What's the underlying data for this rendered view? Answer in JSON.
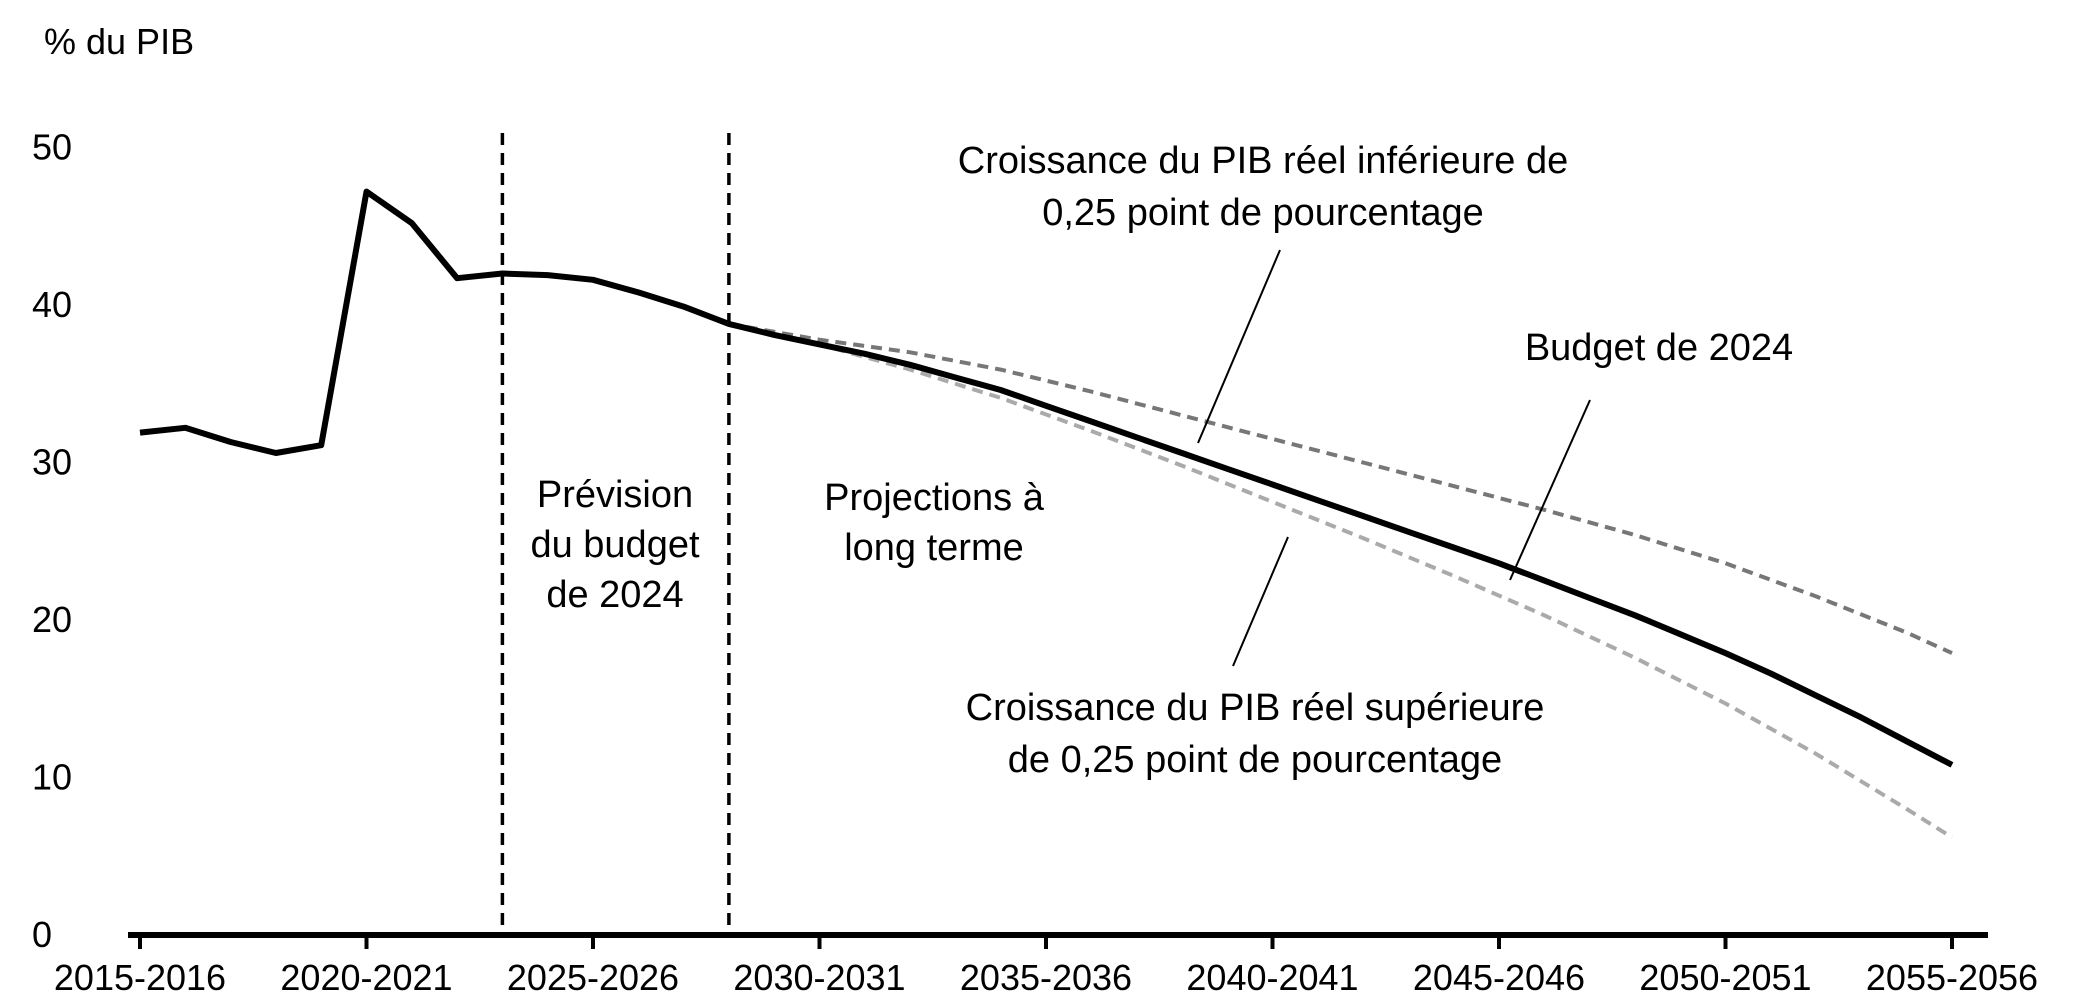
{
  "chart_data": {
    "type": "line",
    "title": "",
    "ylabel": "% du PIB",
    "xlabel": "",
    "ylim": [
      0,
      50
    ],
    "yticks": [
      0,
      10,
      20,
      30,
      40,
      50
    ],
    "xticks": [
      "2015-2016",
      "2020-2021",
      "2025-2026",
      "2030-2031",
      "2035-2036",
      "2040-2041",
      "2045-2046",
      "2050-2051",
      "2055-2056"
    ],
    "grid": false,
    "legend": "none",
    "series": [
      {
        "name": "Budget de 2024",
        "color": "#000000",
        "style": "solid",
        "x": [
          "2015-2016",
          "2016-2017",
          "2017-2018",
          "2018-2019",
          "2019-2020",
          "2020-2021",
          "2021-2022",
          "2022-2023",
          "2023-2024",
          "2024-2025",
          "2025-2026",
          "2026-2027",
          "2027-2028",
          "2028-2029",
          "2029-2030",
          "2030-2031",
          "2031-2032",
          "2032-2033",
          "2033-2034",
          "2034-2035",
          "2035-2036",
          "2036-2037",
          "2037-2038",
          "2038-2039",
          "2039-2040",
          "2040-2041",
          "2041-2042",
          "2042-2043",
          "2043-2044",
          "2044-2045",
          "2045-2046",
          "2046-2047",
          "2047-2048",
          "2048-2049",
          "2049-2050",
          "2050-2051",
          "2051-2052",
          "2052-2053",
          "2053-2054",
          "2054-2055",
          "2055-2056"
        ],
        "values": [
          31.9,
          32.2,
          31.3,
          30.6,
          31.1,
          47.2,
          45.2,
          41.7,
          42.0,
          41.9,
          41.6,
          40.8,
          39.9,
          38.8,
          38.1,
          37.5,
          36.9,
          36.2,
          35.4,
          34.6,
          33.6,
          32.6,
          31.6,
          30.6,
          29.6,
          28.6,
          27.6,
          26.6,
          25.6,
          24.6,
          23.6,
          22.5,
          21.4,
          20.3,
          19.1,
          17.9,
          16.6,
          15.2,
          13.8,
          12.3,
          10.8
        ]
      },
      {
        "name": "Croissance du PIB réel inférieure de 0,25 point de pourcentage",
        "color": "#777777",
        "style": "dashed",
        "x": [
          "2028-2029",
          "2030-2031",
          "2032-2033",
          "2034-2035",
          "2036-2037",
          "2038-2039",
          "2040-2041",
          "2042-2043",
          "2044-2045",
          "2046-2047",
          "2048-2049",
          "2050-2051",
          "2052-2053",
          "2054-2055",
          "2055-2056"
        ],
        "values": [
          38.8,
          37.8,
          37.0,
          35.9,
          34.5,
          33.0,
          31.5,
          30.0,
          28.5,
          27.0,
          25.4,
          23.6,
          21.5,
          19.2,
          17.9
        ]
      },
      {
        "name": "Croissance du PIB réel supérieure de 0,25 point de pourcentage",
        "color": "#aaaaaa",
        "style": "dashed",
        "x": [
          "2028-2029",
          "2030-2031",
          "2032-2033",
          "2034-2035",
          "2036-2037",
          "2038-2039",
          "2040-2041",
          "2042-2043",
          "2044-2045",
          "2046-2047",
          "2048-2049",
          "2050-2051",
          "2052-2053",
          "2054-2055",
          "2055-2056"
        ],
        "values": [
          38.8,
          37.5,
          35.9,
          34.1,
          32.0,
          29.8,
          27.5,
          25.2,
          22.8,
          20.3,
          17.6,
          14.7,
          11.5,
          8.0,
          6.2
        ]
      }
    ],
    "vlines": [
      {
        "x": "2023-2024",
        "style": "dashed"
      },
      {
        "x": "2028-2029",
        "style": "dashed"
      }
    ],
    "annotations": {
      "forecast": [
        "Prévision",
        "du budget",
        "de 2024"
      ],
      "projections": [
        "Projections à",
        "long terme"
      ],
      "lower": [
        "Croissance du PIB réel inférieure de",
        "0,25 point de pourcentage"
      ],
      "budget": [
        "Budget de 2024"
      ],
      "higher": [
        "Croissance du PIB réel supérieure",
        "de 0,25 point de pourcentage"
      ]
    }
  }
}
